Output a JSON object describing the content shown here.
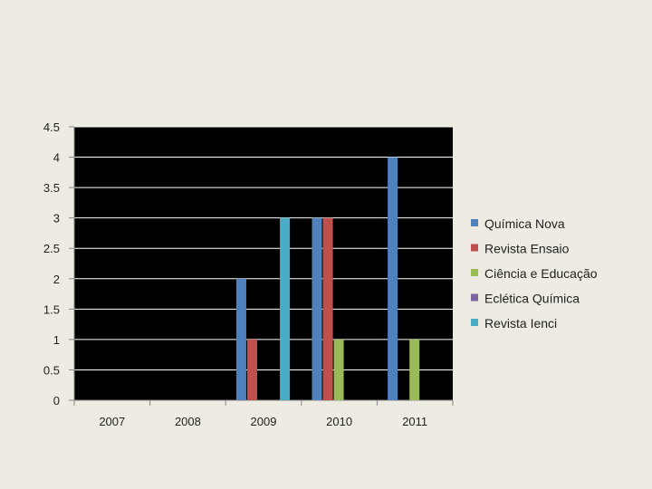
{
  "chart_data": {
    "type": "bar",
    "title": "",
    "xlabel": "",
    "ylabel": "",
    "categories": [
      "2007",
      "2008",
      "2009",
      "2010",
      "2011"
    ],
    "ylim": [
      0,
      4.5
    ],
    "yticks": [
      "0",
      "0.5",
      "1",
      "1.5",
      "2",
      "2.5",
      "3",
      "3.5",
      "4",
      "4.5"
    ],
    "grid": true,
    "plot_background": "#000000",
    "grid_color": "#ffffff",
    "legend_position": "right",
    "series": [
      {
        "name": "Química Nova",
        "color": "#4f81bd",
        "values": [
          0,
          0,
          2,
          3,
          4
        ]
      },
      {
        "name": "Revista Ensaio",
        "color": "#c0504d",
        "values": [
          0,
          0,
          1,
          3,
          0
        ]
      },
      {
        "name": "Ciência e Educação",
        "color": "#9bbb59",
        "values": [
          0,
          0,
          0,
          1,
          1
        ]
      },
      {
        "name": "Eclética Química",
        "color": "#8064a2",
        "values": [
          0,
          0,
          0,
          0,
          0
        ]
      },
      {
        "name": "Revista Ienci",
        "color": "#4bacc6",
        "values": [
          0,
          0,
          3,
          0,
          0
        ]
      }
    ]
  }
}
